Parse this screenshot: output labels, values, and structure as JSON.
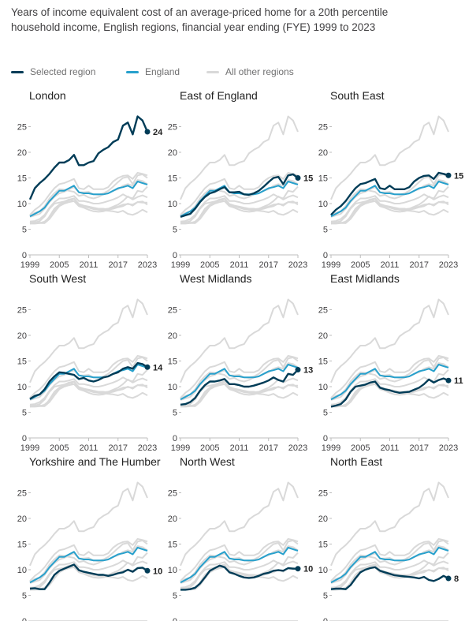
{
  "title": "Years of income equivalent cost of an average-priced home for a 20th percentile household income, English regions, financial year ending (FYE) 1999 to 2023",
  "legend": [
    {
      "label": "Selected region",
      "color": "#003c57"
    },
    {
      "label": "England",
      "color": "#27a0cc"
    },
    {
      "label": "All other regions",
      "color": "#d9d9d9"
    }
  ],
  "chart_data": {
    "type": "line",
    "layout": "small-multiples",
    "x": [
      1999,
      2000,
      2001,
      2002,
      2003,
      2004,
      2005,
      2006,
      2007,
      2008,
      2009,
      2010,
      2011,
      2012,
      2013,
      2014,
      2015,
      2016,
      2017,
      2018,
      2019,
      2020,
      2021,
      2022,
      2023
    ],
    "x_ticks": [
      1999,
      2005,
      2011,
      2017,
      2023
    ],
    "y_ticks": [
      0,
      5,
      10,
      15,
      20,
      25
    ],
    "ylim": [
      0,
      28
    ],
    "colors": {
      "selected": "#003c57",
      "england": "#27a0cc",
      "others": "#d9d9d9"
    },
    "england": [
      7.5,
      8.0,
      8.5,
      9.2,
      10.5,
      11.5,
      12.5,
      12.5,
      13.0,
      13.5,
      12.2,
      12.0,
      12.0,
      11.8,
      11.8,
      11.8,
      12.0,
      12.5,
      13.0,
      13.2,
      13.5,
      13.0,
      14.3,
      14.0,
      13.7
    ],
    "panels": [
      {
        "title": "London",
        "end_label": "24",
        "values": [
          10.8,
          13.0,
          14.0,
          14.8,
          15.8,
          17.0,
          18.0,
          18.0,
          18.5,
          19.5,
          17.5,
          17.5,
          18.0,
          18.3,
          19.8,
          20.5,
          21.0,
          22.0,
          22.5,
          25.2,
          25.8,
          23.5,
          27.0,
          26.2,
          24.0
        ]
      },
      {
        "title": "East of England",
        "end_label": "15",
        "values": [
          7.4,
          7.7,
          8.0,
          9.0,
          10.3,
          11.3,
          12.0,
          12.3,
          12.8,
          13.2,
          12.2,
          12.2,
          12.3,
          11.8,
          11.7,
          12.0,
          12.5,
          13.3,
          14.2,
          15.0,
          15.2,
          13.8,
          15.5,
          15.7,
          15.0
        ]
      },
      {
        "title": "South East",
        "end_label": "15",
        "values": [
          7.8,
          8.8,
          9.5,
          10.5,
          11.8,
          13.0,
          13.8,
          14.0,
          14.4,
          14.8,
          13.0,
          12.8,
          13.5,
          12.8,
          12.8,
          12.8,
          13.2,
          14.3,
          15.0,
          15.4,
          15.5,
          14.8,
          16.0,
          15.8,
          15.5
        ]
      },
      {
        "title": "South West",
        "end_label": "14",
        "values": [
          7.6,
          8.2,
          8.5,
          9.5,
          11.0,
          12.0,
          12.8,
          12.7,
          12.5,
          12.3,
          11.5,
          11.7,
          11.2,
          11.0,
          11.3,
          11.8,
          12.0,
          12.5,
          12.8,
          13.5,
          13.8,
          13.5,
          14.6,
          14.4,
          13.8
        ]
      },
      {
        "title": "West Midlands",
        "end_label": "13",
        "values": [
          6.5,
          6.6,
          7.0,
          7.8,
          9.2,
          10.3,
          11.0,
          11.0,
          11.2,
          11.5,
          10.5,
          10.5,
          10.3,
          10.0,
          10.0,
          10.2,
          10.5,
          10.8,
          11.2,
          11.8,
          11.3,
          11.0,
          12.5,
          12.3,
          13.3
        ]
      },
      {
        "title": "East Midlands",
        "end_label": "11",
        "values": [
          6.1,
          6.3,
          6.6,
          7.5,
          9.0,
          10.0,
          10.2,
          10.4,
          10.8,
          11.0,
          9.8,
          9.5,
          9.3,
          9.0,
          8.8,
          8.9,
          9.0,
          9.4,
          9.8,
          10.5,
          11.4,
          10.8,
          11.3,
          11.6,
          11.2
        ]
      },
      {
        "title": "Yorkshire and The Humber",
        "end_label": "10",
        "values": [
          6.3,
          6.4,
          6.2,
          6.2,
          7.5,
          9.0,
          9.8,
          10.2,
          10.6,
          11.0,
          9.9,
          9.6,
          9.4,
          9.2,
          9.0,
          9.0,
          8.8,
          9.0,
          9.3,
          9.5,
          10.0,
          9.6,
          10.3,
          10.4,
          9.8
        ]
      },
      {
        "title": "North West",
        "end_label": "10",
        "values": [
          6.1,
          6.1,
          6.2,
          6.5,
          7.3,
          8.5,
          9.8,
          10.3,
          10.8,
          10.5,
          9.5,
          9.2,
          8.8,
          8.5,
          8.4,
          8.5,
          8.8,
          9.2,
          9.4,
          9.8,
          9.9,
          9.8,
          10.3,
          10.2,
          10.2
        ]
      },
      {
        "title": "North East",
        "end_label": "8",
        "values": [
          6.2,
          6.3,
          6.3,
          6.2,
          7.0,
          8.3,
          9.5,
          10.0,
          10.3,
          10.5,
          9.8,
          9.5,
          9.2,
          8.9,
          8.8,
          8.7,
          8.6,
          8.5,
          8.3,
          8.6,
          8.0,
          7.8,
          8.2,
          8.8,
          8.3
        ]
      }
    ]
  }
}
